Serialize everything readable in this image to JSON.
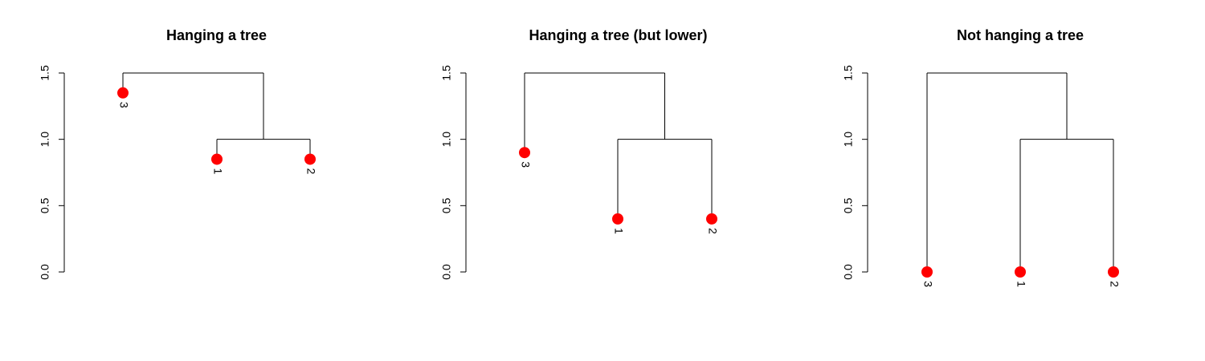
{
  "chart_data": [
    {
      "type": "dendrogram",
      "title": "Hanging a tree",
      "ylim": [
        0,
        1.5
      ],
      "yticks": [
        "0.0",
        "0.5",
        "1.0",
        "1.5"
      ],
      "leaf_order": [
        "3",
        "1",
        "2"
      ],
      "leaf_heights": [
        1.35,
        0.85,
        0.85
      ],
      "merges": [
        {
          "height": 1.0,
          "children": [
            "1",
            "2"
          ]
        },
        {
          "height": 1.5,
          "children": [
            "3",
            "(1,2)"
          ]
        }
      ],
      "point_color": "#ff0000"
    },
    {
      "type": "dendrogram",
      "title": "Hanging a tree (but lower)",
      "ylim": [
        0,
        1.5
      ],
      "yticks": [
        "0.0",
        "0.5",
        "1.0",
        "1.5"
      ],
      "leaf_order": [
        "3",
        "1",
        "2"
      ],
      "leaf_heights": [
        0.9,
        0.4,
        0.4
      ],
      "merges": [
        {
          "height": 1.0,
          "children": [
            "1",
            "2"
          ]
        },
        {
          "height": 1.5,
          "children": [
            "3",
            "(1,2)"
          ]
        }
      ],
      "point_color": "#ff0000"
    },
    {
      "type": "dendrogram",
      "title": "Not hanging a tree",
      "ylim": [
        0,
        1.5
      ],
      "yticks": [
        "0.0",
        "0.5",
        "1.0",
        "1.5"
      ],
      "leaf_order": [
        "3",
        "1",
        "2"
      ],
      "leaf_heights": [
        0.0,
        0.0,
        0.0
      ],
      "merges": [
        {
          "height": 1.0,
          "children": [
            "1",
            "2"
          ]
        },
        {
          "height": 1.5,
          "children": [
            "3",
            "(1,2)"
          ]
        }
      ],
      "point_color": "#ff0000"
    }
  ]
}
